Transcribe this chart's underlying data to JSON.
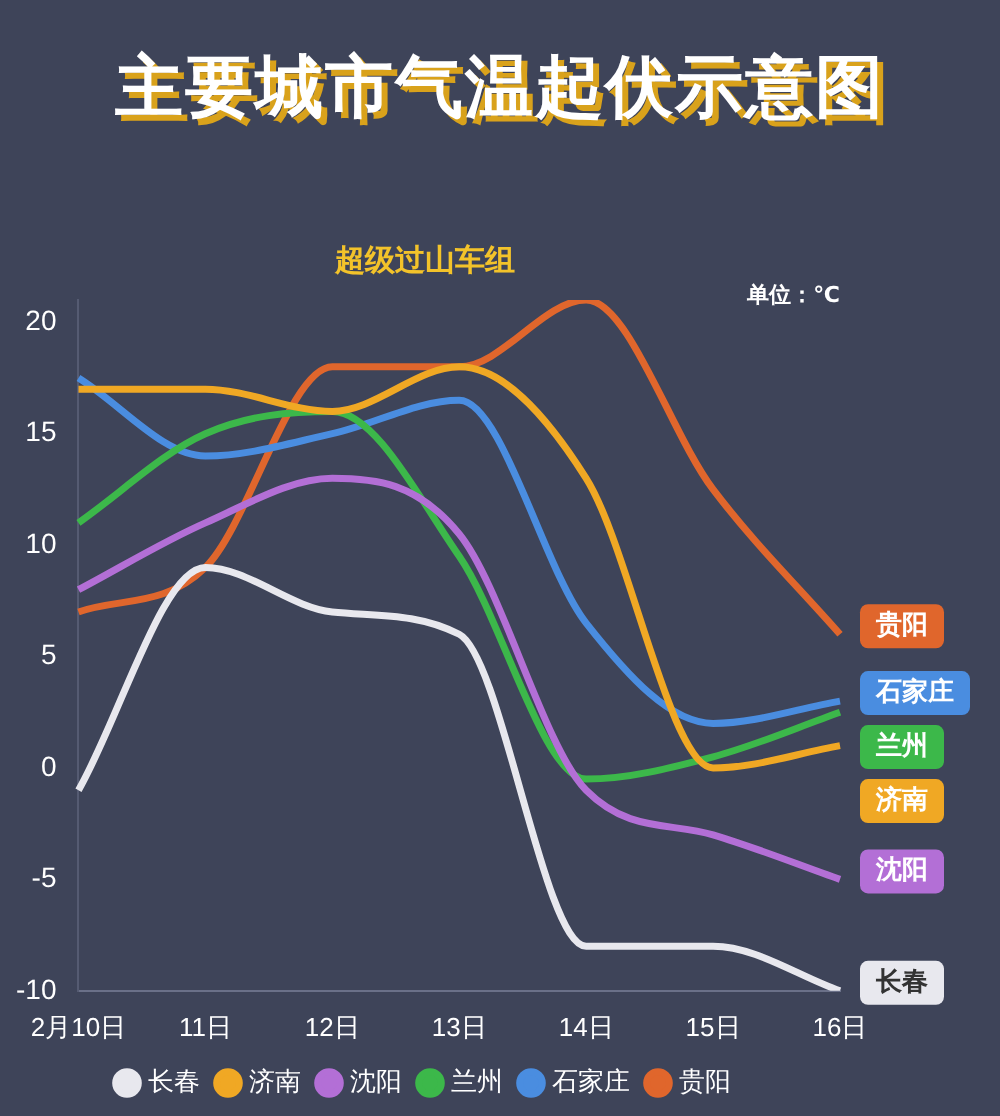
{
  "chart_data": {
    "type": "line",
    "title": "主要城市气温起伏示意图",
    "subtitle": "超级过山车组",
    "annotations": [
      "单位：℃"
    ],
    "categories": [
      "2月10日",
      "11日",
      "12日",
      "13日",
      "14日",
      "15日",
      "16日"
    ],
    "series": [
      {
        "name": "长春",
        "color": "#e8e8ee",
        "values": [
          -1,
          9,
          7,
          6,
          -8,
          -8,
          -10
        ]
      },
      {
        "name": "济南",
        "color": "#f0a824",
        "values": [
          17,
          17,
          16,
          18,
          13,
          0,
          1
        ]
      },
      {
        "name": "沈阳",
        "color": "#b36fd6",
        "values": [
          8,
          11,
          13,
          10.5,
          -1,
          -3,
          -5
        ]
      },
      {
        "name": "兰州",
        "color": "#3cb84a",
        "values": [
          11,
          15,
          16,
          9.5,
          -0.5,
          0.5,
          2.5
        ]
      },
      {
        "name": "石家庄",
        "color": "#4a8de0",
        "values": [
          17.5,
          14,
          15,
          16.5,
          6.5,
          2,
          3
        ]
      },
      {
        "name": "贵阳",
        "color": "#e0662c",
        "values": [
          7,
          9,
          18,
          18,
          21,
          12.5,
          6
        ]
      }
    ],
    "ylim": [
      -10,
      21
    ],
    "yticks": [
      -10,
      -5,
      0,
      5,
      10,
      15,
      20
    ],
    "grid": false,
    "legend": "bottom",
    "marker": "none",
    "line_style": "solid"
  }
}
